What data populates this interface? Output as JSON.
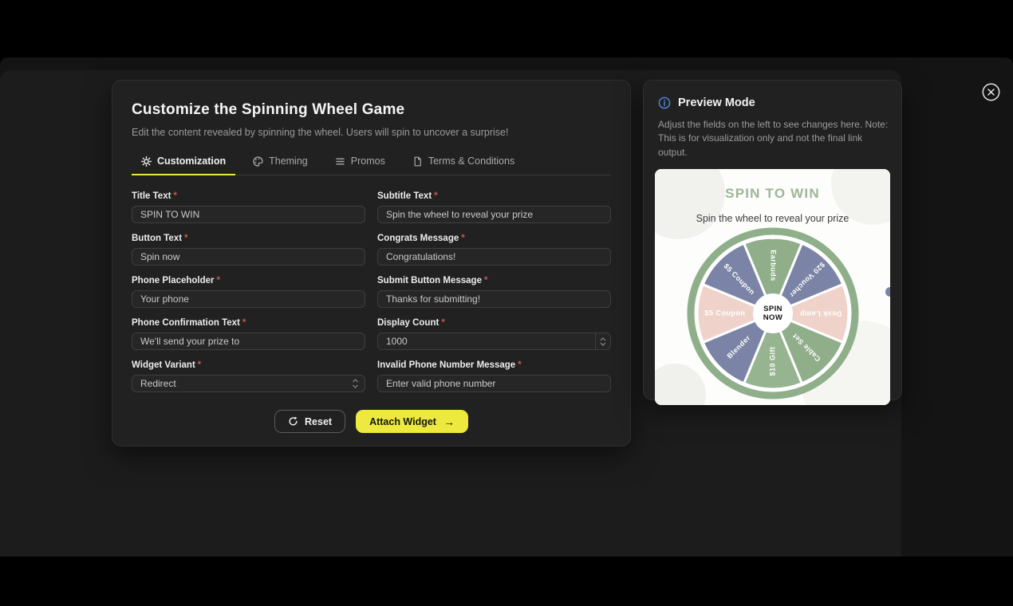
{
  "colors": {
    "accent_yellow": "#EDE93E",
    "required_red": "#C25A50",
    "info_blue": "#4D82D8",
    "widget_title_green": "#9CB795",
    "segment_green": "#8FAE89",
    "segment_slate": "#7B84A6",
    "segment_pink": "#EFD3CB",
    "rim_green": "#8FAF8A"
  },
  "required_marker": "*",
  "close_icon": "circled-x",
  "main_panel": {
    "title": "Customize the Spinning Wheel Game",
    "subtitle": "Edit the content revealed by spinning the wheel. Users will spin to uncover a surprise!",
    "tabs": [
      {
        "label": "Customization",
        "icon": "gear-icon",
        "active": true
      },
      {
        "label": "Theming",
        "icon": "palette-icon",
        "active": false
      },
      {
        "label": "Promos",
        "icon": "list-icon",
        "active": false
      },
      {
        "label": "Terms & Conditions",
        "icon": "file-icon",
        "active": false
      }
    ],
    "fields": [
      {
        "label": "Title Text",
        "required": true,
        "type": "text",
        "value": "SPIN TO WIN"
      },
      {
        "label": "Subtitle Text",
        "required": true,
        "type": "text",
        "value": "Spin the wheel to reveal your prize"
      },
      {
        "label": "Button Text",
        "required": true,
        "type": "text",
        "value": "Spin now"
      },
      {
        "label": "Congrats Message",
        "required": true,
        "type": "text",
        "value": "Congratulations!"
      },
      {
        "label": "Phone Placeholder",
        "required": true,
        "type": "text",
        "value": "Your phone"
      },
      {
        "label": "Submit Button Message",
        "required": true,
        "type": "text",
        "value": "Thanks for submitting!"
      },
      {
        "label": "Phone Confirmation Text",
        "required": true,
        "type": "text",
        "value": "We'll send your prize to"
      },
      {
        "label": "Display Count",
        "required": true,
        "type": "number",
        "value": "1000"
      },
      {
        "label": "Widget Variant",
        "required": true,
        "type": "select",
        "value": "Redirect"
      },
      {
        "label": "Invalid Phone Number Message",
        "required": true,
        "type": "text",
        "value": "Enter valid phone number"
      }
    ],
    "reset_label": "Reset",
    "attach_label": "Attach Widget",
    "attach_arrow": "→"
  },
  "preview_panel": {
    "title": "Preview Mode",
    "description": "Adjust the fields on the left to see changes here. Note: This is for visualization only and not the final link output.",
    "widget": {
      "title": "SPIN TO WIN",
      "subtitle": "Spin the wheel to reveal your prize",
      "center_label": "SPIN NOW",
      "rim_color": "#8FAF8A",
      "segments": [
        {
          "label": "Earbuds",
          "color": "#8FAE89"
        },
        {
          "label": "$20 Voucher",
          "color": "#7B84A6"
        },
        {
          "label": "Desk Lamp",
          "color": "#EFD3CB"
        },
        {
          "label": "Cable Set",
          "color": "#8FAE89"
        },
        {
          "label": "$10 Gift",
          "color": "#96B490"
        },
        {
          "label": "Blender",
          "color": "#7B84A6"
        },
        {
          "label": "$5 Coupon",
          "color": "#EFD3CB"
        },
        {
          "label": "$5 Coupon",
          "color": "#7B84A6"
        }
      ]
    }
  }
}
